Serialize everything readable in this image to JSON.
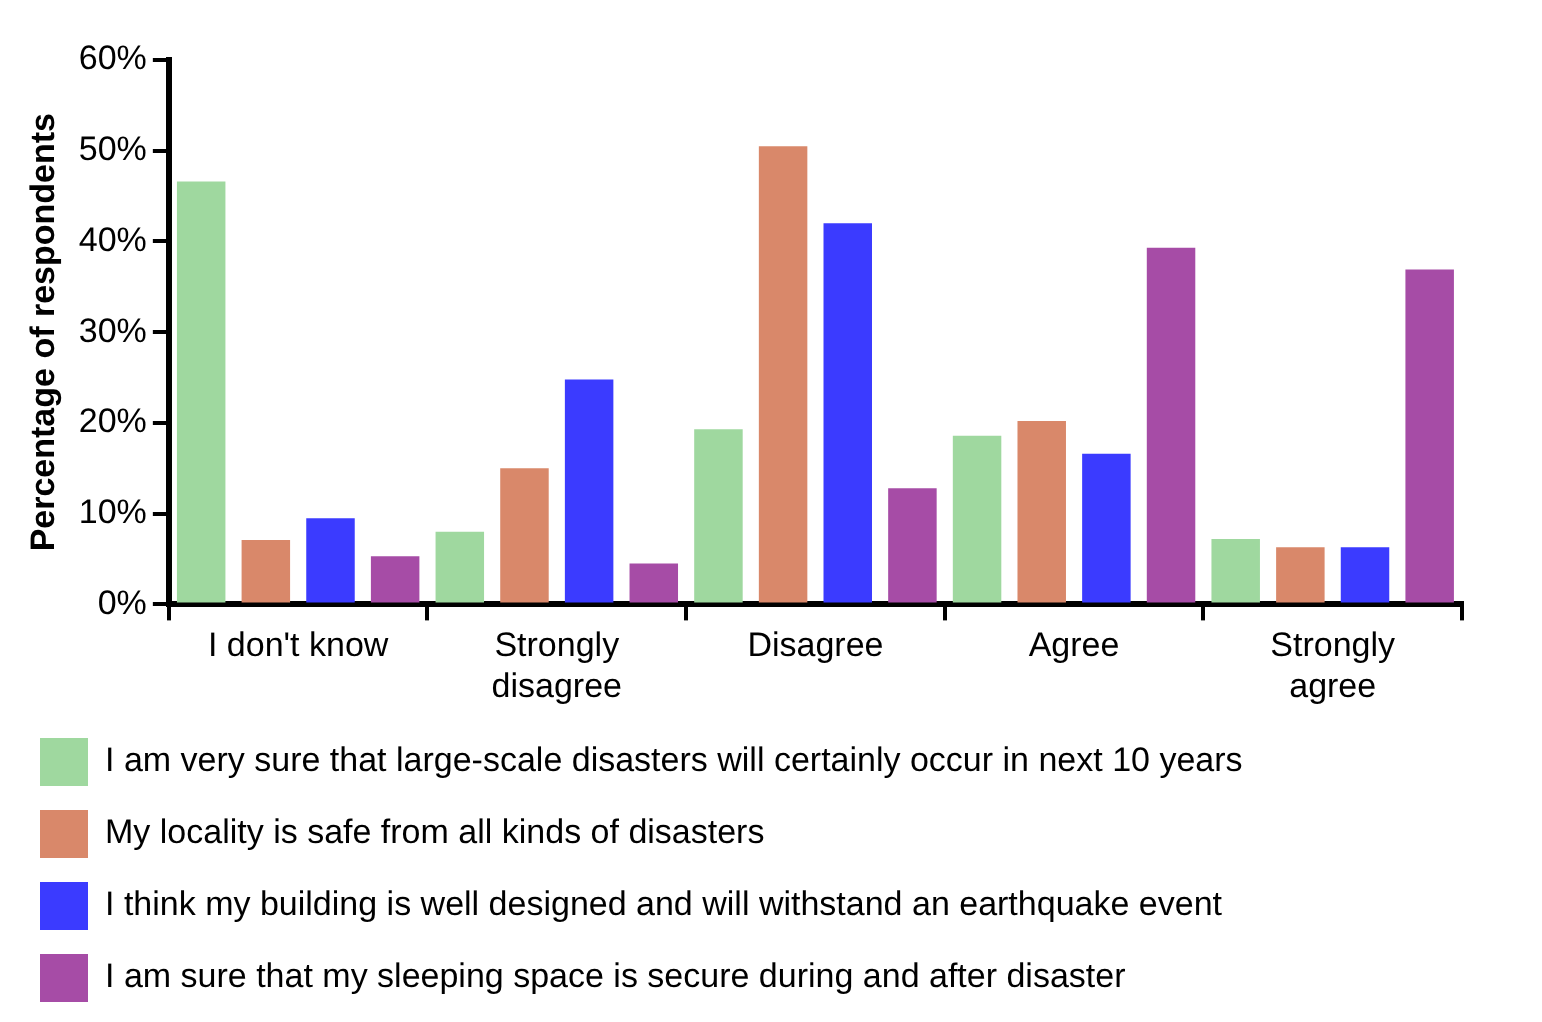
{
  "chart_data": {
    "type": "bar",
    "ylabel": "Percentage of respondents",
    "categories": [
      "I don't know",
      "Strongly disagree",
      "Disagree",
      "Agree",
      "Strongly agree"
    ],
    "series": [
      {
        "name": "I am very sure that large-scale disasters will certainly occur in next 10 years",
        "color": "#9fd89f",
        "values": [
          46.6,
          8.0,
          19.3,
          18.6,
          7.2
        ]
      },
      {
        "name": "My locality is safe from all kinds of disasters",
        "color": "#d9886a",
        "values": [
          7.1,
          15.0,
          50.5,
          20.2,
          6.3
        ]
      },
      {
        "name": "I think my building is well designed and will withstand an earthquake event",
        "color": "#3b3bff",
        "values": [
          9.5,
          24.8,
          42.0,
          16.6,
          6.3
        ]
      },
      {
        "name": "I am sure that my sleeping space is secure during and after disaster",
        "color": "#a64ca6",
        "values": [
          5.3,
          4.5,
          12.8,
          39.3,
          36.9
        ]
      }
    ],
    "ylim": [
      0,
      60
    ],
    "yticks": [
      {
        "value": 0,
        "label": "0%"
      },
      {
        "value": 10,
        "label": "10%"
      },
      {
        "value": 20,
        "label": "20%"
      },
      {
        "value": 30,
        "label": "30%"
      },
      {
        "value": 40,
        "label": "40%"
      },
      {
        "value": 50,
        "label": "50%"
      },
      {
        "value": 60,
        "label": "60%"
      }
    ],
    "grid": false,
    "legend": "bottom"
  }
}
